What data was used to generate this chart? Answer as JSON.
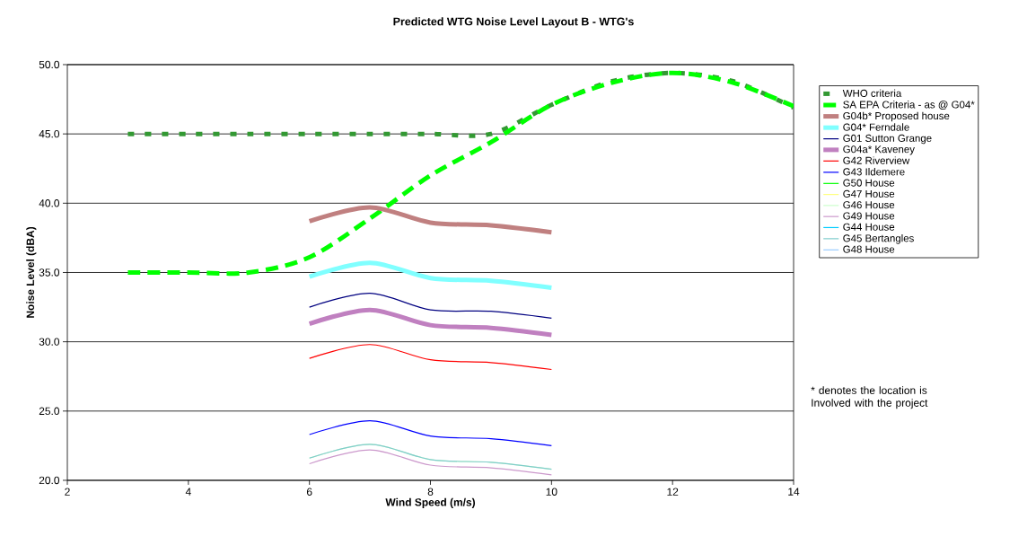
{
  "chart_data": {
    "type": "line",
    "title": "Predicted WTG Noise Level  Layout B - WTG's",
    "xlabel": "Wind Speed (m/s)",
    "ylabel": "Noise Level (dBA)",
    "x": [
      6,
      7,
      8,
      9,
      10
    ],
    "xlim": [
      2,
      14
    ],
    "xticks": [
      2,
      4,
      6,
      8,
      10,
      12,
      14
    ],
    "ylim": [
      20,
      50
    ],
    "yticks": [
      {
        "value": 20,
        "label": "20.0"
      },
      {
        "value": 25,
        "label": "25.0"
      },
      {
        "value": 30,
        "label": "30.0"
      },
      {
        "value": 35,
        "label": "35.0"
      },
      {
        "value": 40,
        "label": "40.0"
      },
      {
        "value": 45,
        "label": "45.0"
      },
      {
        "value": 50,
        "label": "50.0"
      }
    ],
    "grid": "y",
    "legend": "right",
    "marker": "none",
    "annotations": [
      "* denotes the location is Involved with the project"
    ],
    "series": [
      {
        "name": "WHO criteria",
        "color": "#339933",
        "line_style": "dotted",
        "x": [
          3,
          4,
          5,
          6,
          7,
          8,
          9,
          10,
          11,
          12,
          13,
          14
        ],
        "values": [
          45,
          45,
          45,
          45,
          45,
          45,
          45,
          47.1,
          48.8,
          49.4,
          48.8,
          46.9
        ]
      },
      {
        "name": "SA EPA  Criteria - as @ G04*",
        "color": "#00ff00",
        "line_style": "dashed",
        "x": [
          3,
          4,
          5,
          6,
          7,
          8,
          9,
          10,
          11,
          12,
          13,
          14
        ],
        "values": [
          35,
          35,
          35,
          36.1,
          38.9,
          42.0,
          44.4,
          47.1,
          48.7,
          49.4,
          48.7,
          47.0
        ]
      },
      {
        "name": "G04b* Proposed house",
        "color": "#c08080",
        "values": [
          38.7,
          39.7,
          38.6,
          38.4,
          37.9
        ]
      },
      {
        "name": "G04* Ferndale",
        "color": "#80ffff",
        "values": [
          34.7,
          35.7,
          34.6,
          34.4,
          33.9
        ]
      },
      {
        "name": "G01 Sutton Grange",
        "color": "#000080",
        "values": [
          32.5,
          33.5,
          32.3,
          32.2,
          31.7
        ]
      },
      {
        "name": "G04a* Kaveney",
        "color": "#c080c0",
        "values": [
          31.3,
          32.3,
          31.2,
          31.0,
          30.5
        ]
      },
      {
        "name": "G42 Riverview",
        "color": "#ff0000",
        "values": [
          28.8,
          29.8,
          28.7,
          28.5,
          28.0
        ]
      },
      {
        "name": "G43 Ildemere",
        "color": "#0000ff",
        "values": [
          23.3,
          24.3,
          23.2,
          23.0,
          22.5
        ]
      },
      {
        "name": "G50 House",
        "color": "#00ff00",
        "values": [
          null,
          null,
          null,
          null,
          null
        ]
      },
      {
        "name": "G47 House",
        "color": "#ffff80",
        "values": [
          null,
          null,
          null,
          null,
          null
        ]
      },
      {
        "name": "G46 House",
        "color": "#ccffcc",
        "values": [
          21.6,
          22.6,
          21.5,
          21.3,
          20.8
        ]
      },
      {
        "name": "G49 House",
        "color": "#cc99cc",
        "values": [
          21.2,
          22.2,
          21.1,
          20.9,
          20.4
        ]
      },
      {
        "name": "G44 House",
        "color": "#00ccff",
        "values": [
          null,
          null,
          null,
          null,
          null
        ]
      },
      {
        "name": "G45 Bertangles",
        "color": "#80cccc",
        "values": [
          21.6,
          22.6,
          21.5,
          21.3,
          20.8
        ]
      },
      {
        "name": "G48 House",
        "color": "#99ccff",
        "values": [
          null,
          null,
          null,
          null,
          null
        ]
      }
    ]
  }
}
